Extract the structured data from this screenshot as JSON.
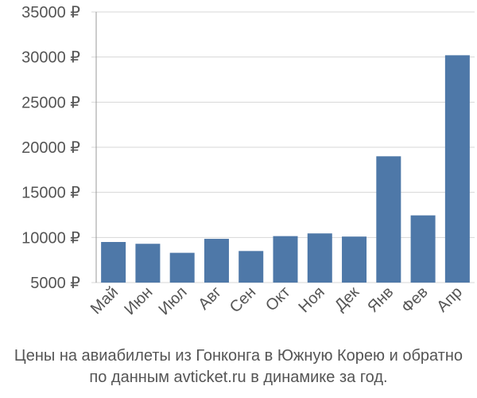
{
  "chart_data": {
    "type": "bar",
    "categories": [
      "Май",
      "Июн",
      "Июл",
      "Авг",
      "Сен",
      "Окт",
      "Ноя",
      "Дек",
      "Янв",
      "Фев",
      "Апр"
    ],
    "values": [
      9500,
      9300,
      8300,
      9850,
      8500,
      10150,
      10450,
      10100,
      19000,
      12450,
      30200
    ],
    "ylim": [
      5000,
      35000
    ],
    "yticks": [
      5000,
      10000,
      15000,
      20000,
      25000,
      30000,
      35000
    ],
    "ytick_labels": [
      "5000 ₽",
      "10000 ₽",
      "15000 ₽",
      "20000 ₽",
      "25000 ₽",
      "30000 ₽",
      "35000 ₽"
    ],
    "grid": true,
    "bar_color": "#4e78a8",
    "caption_line1": "Цены на авиабилеты из Гонконга в Южную Корею и обратно",
    "caption_line2": "по данным avticket.ru в динамике за год."
  }
}
